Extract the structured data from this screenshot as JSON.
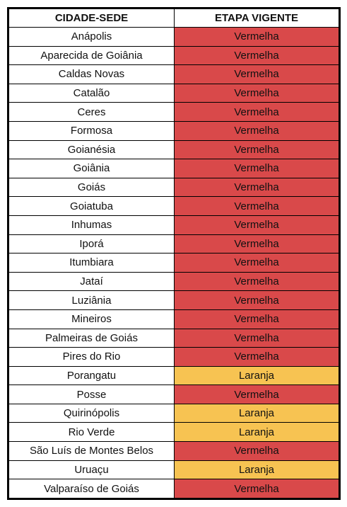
{
  "table": {
    "headers": [
      "CIDADE-SEDE",
      "ETAPA VIGENTE"
    ],
    "colors": {
      "Vermelha": "#d9494a",
      "Laranja": "#f7c352"
    },
    "rows": [
      {
        "city": "Anápolis",
        "stage": "Vermelha"
      },
      {
        "city": "Aparecida de Goiânia",
        "stage": "Vermelha"
      },
      {
        "city": "Caldas Novas",
        "stage": "Vermelha"
      },
      {
        "city": "Catalão",
        "stage": "Vermelha"
      },
      {
        "city": "Ceres",
        "stage": "Vermelha"
      },
      {
        "city": "Formosa",
        "stage": "Vermelha"
      },
      {
        "city": "Goianésia",
        "stage": "Vermelha"
      },
      {
        "city": "Goiânia",
        "stage": "Vermelha"
      },
      {
        "city": "Goiás",
        "stage": "Vermelha"
      },
      {
        "city": "Goiatuba",
        "stage": "Vermelha"
      },
      {
        "city": "Inhumas",
        "stage": "Vermelha"
      },
      {
        "city": "Iporá",
        "stage": "Vermelha"
      },
      {
        "city": "Itumbiara",
        "stage": "Vermelha"
      },
      {
        "city": "Jataí",
        "stage": "Vermelha"
      },
      {
        "city": "Luziânia",
        "stage": "Vermelha"
      },
      {
        "city": "Mineiros",
        "stage": "Vermelha"
      },
      {
        "city": "Palmeiras de Goiás",
        "stage": "Vermelha"
      },
      {
        "city": "Pires do Rio",
        "stage": "Vermelha"
      },
      {
        "city": "Porangatu",
        "stage": "Laranja"
      },
      {
        "city": "Posse",
        "stage": "Vermelha"
      },
      {
        "city": "Quirinópolis",
        "stage": "Laranja"
      },
      {
        "city": "Rio Verde",
        "stage": "Laranja"
      },
      {
        "city": "São Luís de Montes Belos",
        "stage": "Vermelha"
      },
      {
        "city": "Uruaçu",
        "stage": "Laranja"
      },
      {
        "city": "Valparaíso de Goiás",
        "stage": "Vermelha"
      }
    ]
  }
}
